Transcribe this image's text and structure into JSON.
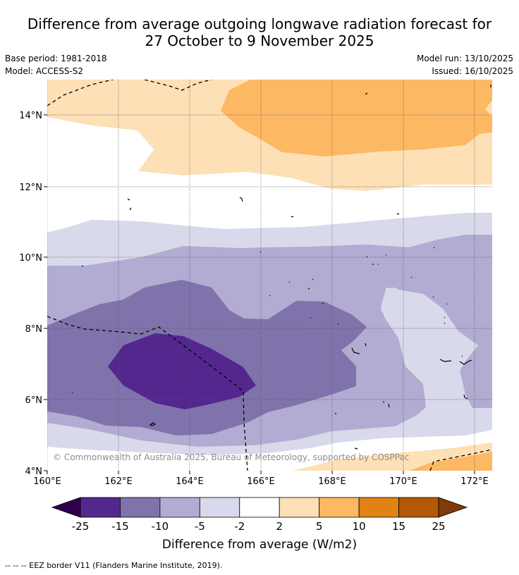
{
  "title": {
    "line1": "Difference from average outgoing longwave radiation forecast for",
    "line2": "27 October to 9 November 2025"
  },
  "meta": {
    "base_period": "Base period: 1981-2018",
    "model": "Model: ACCESS-S2",
    "model_run": "Model run: 13/10/2025",
    "issued": "Issued: 16/10/2025"
  },
  "map": {
    "lat_labels": [
      "14°N",
      "12°N",
      "10°N",
      "8°N",
      "6°N",
      "4°N"
    ],
    "lon_labels": [
      "160°E",
      "162°E",
      "164°E",
      "166°E",
      "168°E",
      "170°E",
      "172°E"
    ],
    "copyright": "© Commonwealth of Australia 2025, Bureau of Meteorology, supported by COSPPac"
  },
  "colorbar": {
    "ticks": [
      "-25",
      "-15",
      "-10",
      "-5",
      "-2",
      "2",
      "5",
      "10",
      "15",
      "25"
    ],
    "colors": [
      "#54278f",
      "#8073ac",
      "#b2abd2",
      "#d8daeb",
      "#ffffff",
      "#fee0b6",
      "#fdb863",
      "#e08214",
      "#b35806"
    ],
    "under_color": "#2d004b",
    "over_color": "#7f3b08",
    "label": "Difference from average (W/m2)"
  },
  "legend": {
    "eez_line": "--  --  -- EEZ border V11 (Flanders Marine Institute, 2019)."
  }
}
